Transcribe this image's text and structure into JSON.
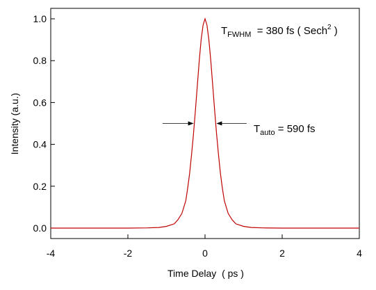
{
  "chart_data": {
    "type": "line",
    "xlabel": "Time Delay  ( ps )",
    "ylabel": "Intensity (a.u.)",
    "xlim": [
      -4,
      4
    ],
    "ylim": [
      -0.05,
      1.05
    ],
    "xticks": [
      -4,
      -2,
      0,
      2,
      4
    ],
    "yticks": [
      "0.0",
      "0.2",
      "0.4",
      "0.6",
      "0.8",
      "1.0"
    ],
    "grid": false,
    "line_color": "#c00000",
    "series": [
      {
        "x": [
          -4,
          -3.5,
          -3,
          -2.5,
          -2,
          -1.5,
          -1.2,
          -1.0,
          -0.8,
          -0.7,
          -0.6,
          -0.5,
          -0.45,
          -0.4,
          -0.35,
          -0.3,
          -0.25,
          -0.2,
          -0.15,
          -0.1,
          -0.05,
          0,
          0.05,
          0.1,
          0.15,
          0.2,
          0.25,
          0.3,
          0.35,
          0.4,
          0.45,
          0.5,
          0.6,
          0.7,
          0.8,
          1.0,
          1.2,
          1.5,
          2,
          2.5,
          3,
          3.5,
          4
        ],
        "values": [
          0.0,
          0.0,
          0.0,
          0.0,
          0.0,
          0.001,
          0.003,
          0.008,
          0.02,
          0.04,
          0.07,
          0.13,
          0.19,
          0.26,
          0.35,
          0.45,
          0.56,
          0.68,
          0.8,
          0.9,
          0.97,
          1.0,
          0.97,
          0.9,
          0.8,
          0.68,
          0.56,
          0.45,
          0.35,
          0.26,
          0.19,
          0.13,
          0.07,
          0.04,
          0.02,
          0.008,
          0.003,
          0.001,
          0.0,
          0.0,
          0.0,
          0.0,
          0.0
        ]
      }
    ],
    "annotations": {
      "fwhm": {
        "label_main": "T",
        "label_sub": "FWHM",
        "label_rest": "  = 380 fs ( Sech",
        "label_sup": "2",
        "label_end": " )"
      },
      "auto": {
        "label_main": "T",
        "label_sub": "auto",
        "label_rest": " = 590 fs",
        "level": 0.5,
        "half_width": 0.295
      }
    }
  }
}
